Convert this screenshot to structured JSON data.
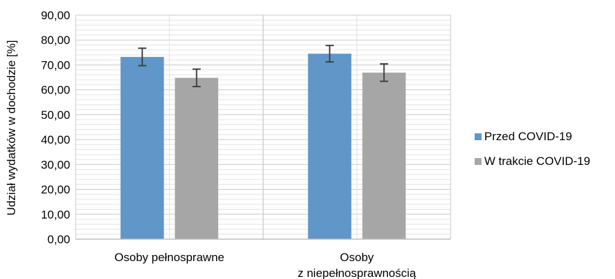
{
  "chart_data": {
    "type": "bar",
    "title": "",
    "xlabel": "",
    "ylabel": "Udział wydatków w dochodzie [%]",
    "categories": [
      [
        "Osoby pełnosprawne"
      ],
      [
        "Osoby",
        "z niepełnosprawnością"
      ]
    ],
    "series": [
      {
        "name": "Przed COVID-19",
        "color": "#6096c8",
        "values": [
          73.2,
          74.5
        ],
        "error": [
          3.5,
          3.3
        ]
      },
      {
        "name": "W trakcie COVID-19",
        "color": "#a6a6a6",
        "values": [
          64.8,
          66.9
        ],
        "error": [
          3.5,
          3.5
        ]
      }
    ],
    "ylim": [
      0,
      90
    ],
    "ytick_step": 10,
    "ytick_labels": [
      "0,00",
      "10,00",
      "20,00",
      "30,00",
      "40,00",
      "50,00",
      "60,00",
      "70,00",
      "80,00",
      "90,00"
    ],
    "grid": true,
    "legend_position": "right"
  }
}
